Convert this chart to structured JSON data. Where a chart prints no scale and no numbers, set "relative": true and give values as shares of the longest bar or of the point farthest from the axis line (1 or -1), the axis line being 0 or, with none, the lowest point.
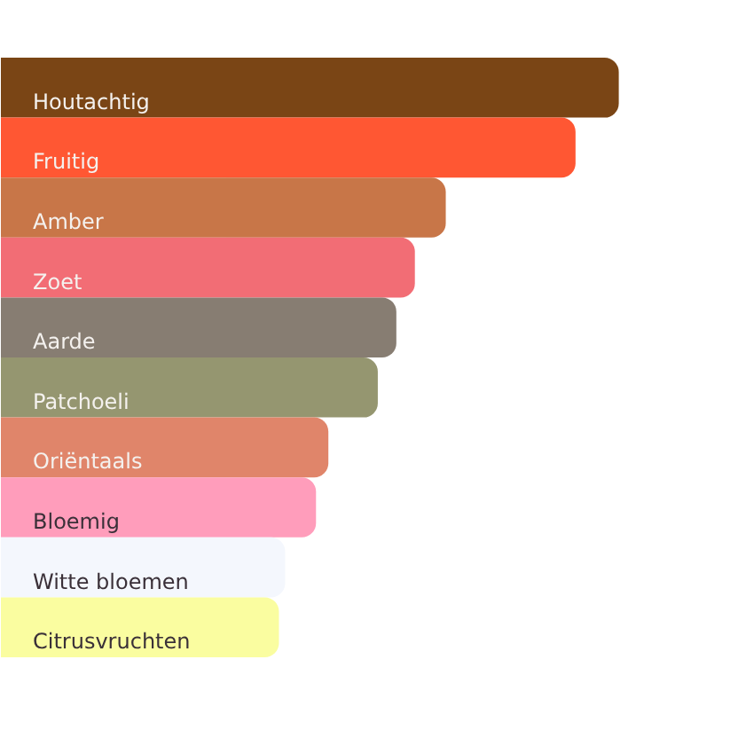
{
  "chart_data": {
    "type": "bar",
    "orientation": "horizontal",
    "relative": true,
    "categories": [
      "Houtachtig",
      "Fruitig",
      "Amber",
      "Zoet",
      "Aarde",
      "Patchoeli",
      "Oriëntaals",
      "Bloemig",
      "Witte bloemen",
      "Citrusvruchten"
    ],
    "values": [
      1,
      0.93,
      0.72,
      0.67,
      0.64,
      0.61,
      0.53,
      0.51,
      0.46,
      0.45
    ],
    "colors": [
      "#7a4515",
      "#ff5733",
      "#c87648",
      "#f26d75",
      "#877d72",
      "#959670",
      "#e0856a",
      "#ff9dbb",
      "#f4f7fd",
      "#fafda0"
    ]
  }
}
